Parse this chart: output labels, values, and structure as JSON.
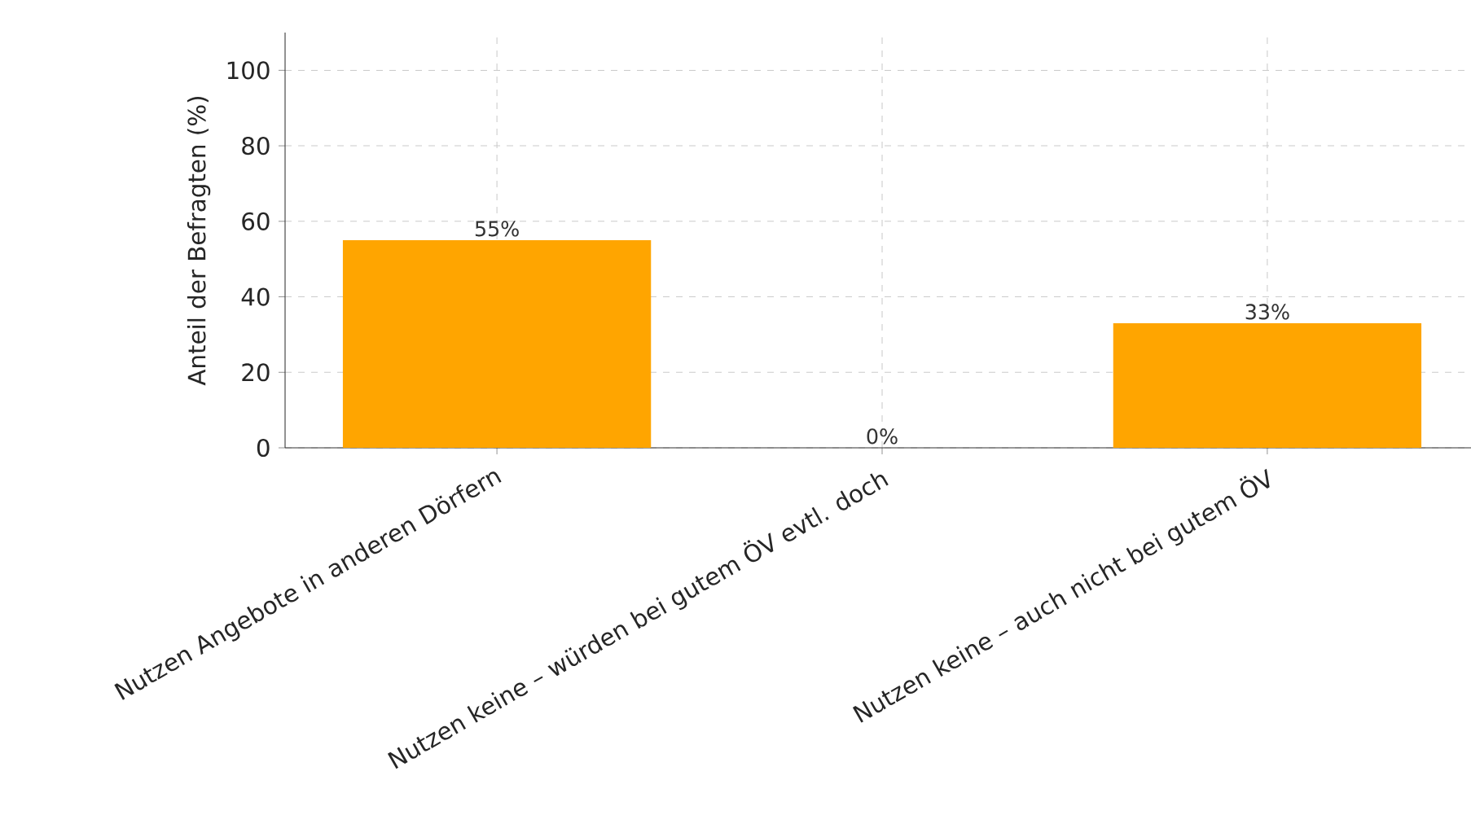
{
  "chart_data": {
    "type": "bar",
    "ylabel": "Anteil der Befragten (%)",
    "categories": [
      "Nutzen Angebote in anderen Dörfern",
      "Nutzen keine – würden bei gutem ÖV evtl. doch",
      "Nutzen keine – auch nicht bei gutem ÖV"
    ],
    "values": [
      55,
      0,
      33
    ],
    "value_labels": [
      "55%",
      "0%",
      "33%"
    ],
    "color": "#ffa500",
    "ylim": [
      0,
      110
    ],
    "yticks": [
      0,
      20,
      40,
      60,
      80,
      100
    ],
    "grid": true
  }
}
